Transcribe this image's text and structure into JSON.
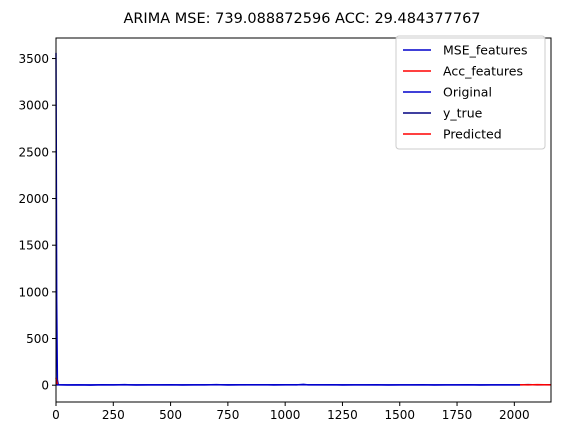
{
  "chart_data": {
    "type": "line",
    "title": "ARIMA MSE: 739.088872596 ACC: 29.484377767",
    "xlabel": "",
    "ylabel": "",
    "xlim": [
      0,
      2160
    ],
    "ylim": [
      -180,
      3720
    ],
    "xticks": [
      0,
      250,
      500,
      750,
      1000,
      1250,
      1500,
      1750,
      2000
    ],
    "yticks": [
      0,
      500,
      1000,
      1500,
      2000,
      2500,
      3000,
      3500
    ],
    "grid": false,
    "legend_position": "top-right",
    "series": [
      {
        "name": "MSE_features",
        "color": "#0000cc",
        "points": [
          [
            0,
            3560
          ],
          [
            3,
            900
          ],
          [
            6,
            60
          ],
          [
            10,
            5
          ],
          [
            50,
            2
          ],
          [
            100,
            4
          ],
          [
            150,
            1
          ],
          [
            200,
            5
          ],
          [
            250,
            3
          ],
          [
            300,
            6
          ],
          [
            350,
            2
          ],
          [
            400,
            4
          ],
          [
            450,
            3
          ],
          [
            500,
            5
          ],
          [
            550,
            2
          ],
          [
            600,
            4
          ],
          [
            650,
            3
          ],
          [
            700,
            6
          ],
          [
            750,
            2
          ],
          [
            800,
            4
          ],
          [
            850,
            3
          ],
          [
            900,
            5
          ],
          [
            950,
            2
          ],
          [
            1000,
            4
          ],
          [
            1050,
            3
          ],
          [
            1080,
            9
          ],
          [
            1100,
            4
          ],
          [
            1150,
            3
          ],
          [
            1200,
            5
          ],
          [
            1250,
            2
          ],
          [
            1300,
            4
          ],
          [
            1350,
            3
          ],
          [
            1400,
            5
          ],
          [
            1450,
            2
          ],
          [
            1500,
            4
          ],
          [
            1550,
            3
          ],
          [
            1600,
            5
          ],
          [
            1650,
            2
          ],
          [
            1700,
            4
          ],
          [
            1750,
            3
          ],
          [
            1800,
            5
          ],
          [
            1850,
            2
          ],
          [
            1900,
            4
          ],
          [
            1950,
            3
          ],
          [
            2000,
            4
          ],
          [
            2025,
            3
          ]
        ]
      },
      {
        "name": "Acc_features",
        "color": "#ff0000",
        "points": [
          [
            0,
            80
          ],
          [
            3,
            40
          ],
          [
            6,
            10
          ],
          [
            10,
            2
          ]
        ]
      },
      {
        "name": "Original",
        "color": "#0000cc",
        "points": [
          [
            0,
            4
          ],
          [
            500,
            3
          ],
          [
            1000,
            5
          ],
          [
            1500,
            3
          ],
          [
            2025,
            4
          ]
        ]
      },
      {
        "name": "y_true",
        "color": "#000080",
        "points": [
          [
            2025,
            4
          ],
          [
            2060,
            6
          ],
          [
            2100,
            3
          ],
          [
            2160,
            5
          ]
        ]
      },
      {
        "name": "Predicted",
        "color": "#ff0000",
        "points": [
          [
            2025,
            5
          ],
          [
            2060,
            4
          ],
          [
            2100,
            6
          ],
          [
            2160,
            4
          ]
        ]
      }
    ]
  }
}
